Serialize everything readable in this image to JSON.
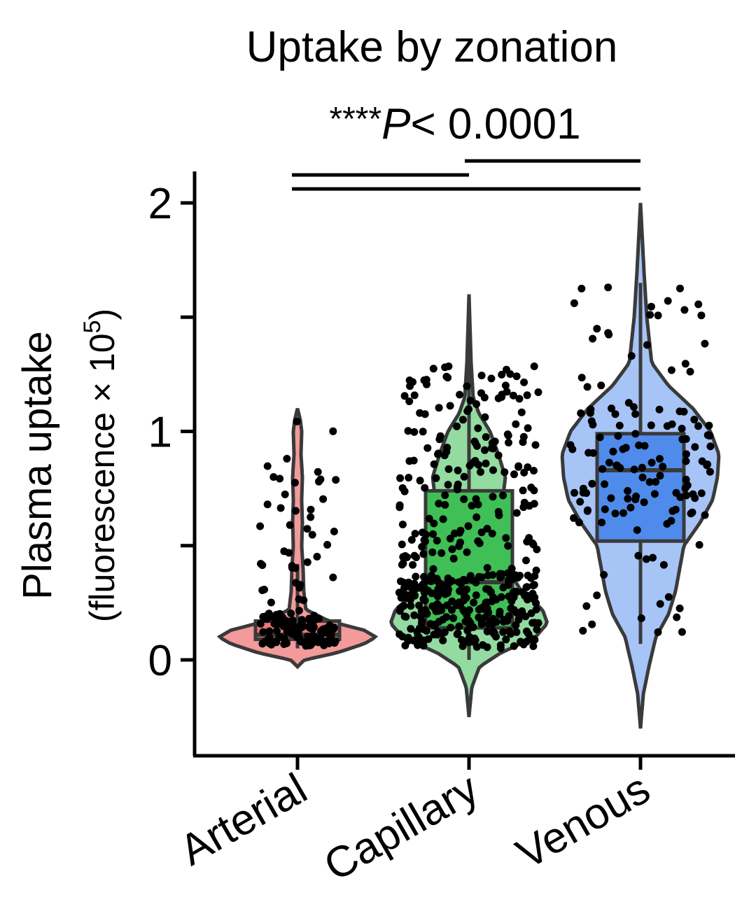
{
  "chart_data": {
    "type": "violin",
    "title": "Uptake by zonation",
    "significance": {
      "prefix": "****",
      "p_symbol": "P",
      "text": "< 0.0001",
      "comparisons": [
        [
          "Capillary",
          "Venous"
        ],
        [
          "Arterial",
          "Capillary"
        ],
        [
          "Arterial",
          "Venous"
        ]
      ]
    },
    "ylabel": {
      "line1": "Plasma uptake",
      "line2_prefix": "(fluorescence × 10",
      "line2_sup": "5",
      "line2_suffix": ")"
    },
    "xlabel": "",
    "ylim": [
      -0.4,
      2.1
    ],
    "yticks": [
      0,
      0.5,
      1,
      1.5,
      2
    ],
    "ytick_labels": [
      "0",
      "",
      "1",
      "",
      "2"
    ],
    "categories": [
      "Arterial",
      "Capillary",
      "Venous"
    ],
    "grid": false,
    "legend": "none",
    "series": [
      {
        "category": "Arterial",
        "color": "#f39a9a",
        "box_color": "#ee7878",
        "box": {
          "q1": 0.09,
          "median": 0.11,
          "q3": 0.17
        },
        "whisker": [
          0.05,
          0.42
        ],
        "violin_range": [
          -0.03,
          1.1
        ],
        "n_points": 150
      },
      {
        "category": "Capillary",
        "color": "#93dba0",
        "box_color": "#3fbf55",
        "box": {
          "q1": 0.14,
          "median": 0.34,
          "q3": 0.74
        },
        "whisker": [
          0.0,
          1.6
        ],
        "violin_range": [
          -0.25,
          1.6
        ],
        "n_points": 450
      },
      {
        "category": "Venous",
        "color": "#a7c4f7",
        "box_color": "#4f8bea",
        "box": {
          "q1": 0.52,
          "median": 0.83,
          "q3": 0.99
        },
        "whisker": [
          0.07,
          1.65
        ],
        "violin_range": [
          -0.3,
          2.0
        ],
        "n_points": 140
      }
    ]
  }
}
